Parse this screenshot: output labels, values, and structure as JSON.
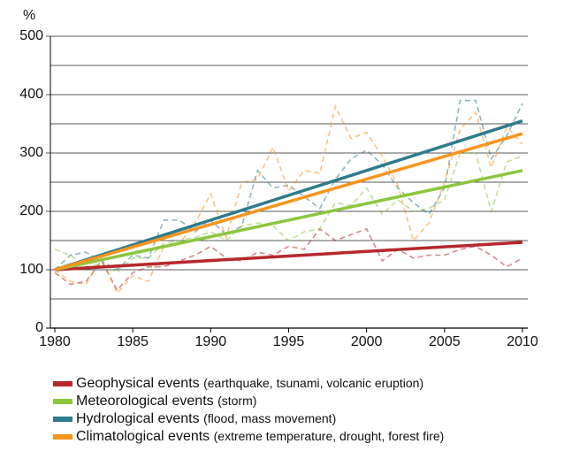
{
  "chart_data": {
    "type": "line",
    "y_label": "%",
    "xlim": [
      1980,
      2010
    ],
    "xticks": [
      1980,
      1985,
      1990,
      1995,
      2000,
      2005,
      2010
    ],
    "ylim": [
      0,
      500
    ],
    "yticks": [
      0,
      100,
      200,
      300,
      400,
      500
    ],
    "minor_grid": [
      50,
      150,
      250,
      350,
      450
    ],
    "grid": true,
    "x": [
      1980,
      1981,
      1982,
      1983,
      1984,
      1985,
      1986,
      1987,
      1988,
      1989,
      1990,
      1991,
      1992,
      1993,
      1994,
      1995,
      1996,
      1997,
      1998,
      1999,
      2000,
      2001,
      2002,
      2003,
      2004,
      2005,
      2006,
      2007,
      2008,
      2009,
      2010
    ],
    "series": [
      {
        "name": "Geophysical events",
        "description": "(earthquake, tsunami, volcanic eruption)",
        "color": "#b5282e",
        "values": [
          95,
          75,
          80,
          115,
          65,
          95,
          105,
          105,
          115,
          125,
          140,
          120,
          115,
          130,
          125,
          140,
          135,
          170,
          150,
          160,
          170,
          115,
          135,
          120,
          125,
          125,
          135,
          140,
          125,
          105,
          120
        ],
        "trend_x": [
          1980,
          2010
        ],
        "trend": [
          100,
          147
        ]
      },
      {
        "name": "Meteorological events",
        "description": "(storm)",
        "color": "#8cc63f",
        "values": [
          135,
          125,
          105,
          110,
          95,
          120,
          120,
          145,
          150,
          155,
          165,
          150,
          175,
          180,
          175,
          150,
          165,
          170,
          215,
          210,
          240,
          195,
          220,
          200,
          205,
          220,
          300,
          300,
          200,
          285,
          295
        ],
        "trend_x": [
          1980,
          2010
        ],
        "trend": [
          100,
          270
        ]
      },
      {
        "name": "Hydrological events",
        "description": "(flood, mass movement)",
        "color": "#2f7b8c",
        "values": [
          100,
          125,
          130,
          115,
          100,
          125,
          120,
          185,
          185,
          165,
          185,
          160,
          175,
          270,
          240,
          245,
          225,
          205,
          255,
          290,
          305,
          280,
          240,
          215,
          195,
          240,
          390,
          390,
          290,
          330,
          385
        ],
        "trend_x": [
          1980,
          2010
        ],
        "trend": [
          100,
          355
        ]
      },
      {
        "name": "Climatological events",
        "description": "(extreme temperature, drought, forest fire)",
        "color": "#f7941d",
        "values": [
          100,
          80,
          75,
          120,
          60,
          90,
          80,
          140,
          145,
          180,
          230,
          155,
          250,
          255,
          310,
          235,
          270,
          265,
          380,
          325,
          335,
          295,
          245,
          150,
          180,
          250,
          340,
          370,
          275,
          345,
          315
        ],
        "trend_x": [
          1980,
          2010
        ],
        "trend": [
          100,
          333
        ]
      }
    ]
  }
}
